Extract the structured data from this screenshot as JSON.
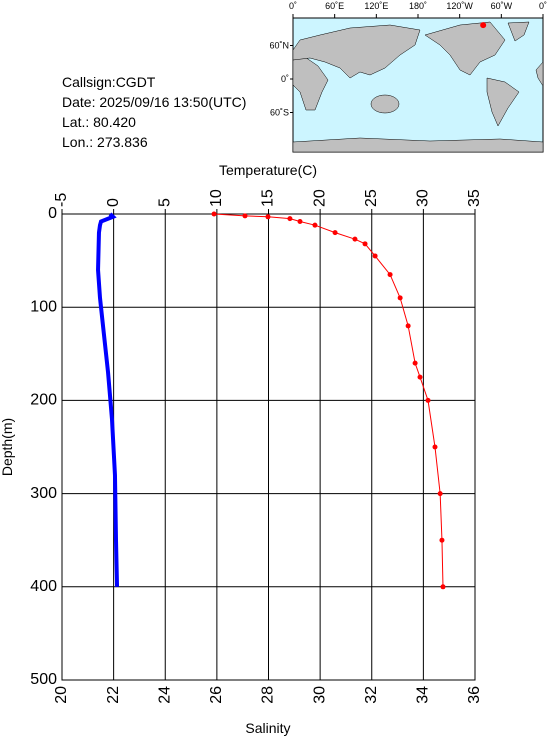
{
  "info": {
    "callsign": "Callsign:CGDT",
    "date": "Date:  2025/09/16 13:50(UTC)",
    "lat": "Lat.:  80.420",
    "lon": "Lon.:  273.836"
  },
  "map": {
    "lon_labels": [
      "0˚",
      "60˚E",
      "120˚E",
      "180˚",
      "120˚W",
      "60˚W",
      "0˚"
    ],
    "lat_labels": [
      "60˚N",
      "0˚",
      "60˚S"
    ],
    "station": {
      "lon": 273.836,
      "lat": 80.42,
      "color": "#ff0000"
    }
  },
  "chart_data": {
    "type": "line",
    "xlabel": "Salinity",
    "x2label": "Temperature(C)",
    "ylabel": "Depth(m)",
    "xlim": [
      20,
      36
    ],
    "xticks": [
      20,
      22,
      24,
      26,
      28,
      30,
      32,
      34,
      36
    ],
    "x2lim": [
      -5,
      35
    ],
    "x2ticks": [
      -5,
      0,
      5,
      10,
      15,
      20,
      25,
      30,
      35
    ],
    "ylim": [
      0,
      500
    ],
    "yticks": [
      0,
      100,
      200,
      300,
      400,
      500
    ],
    "y_inverted": true,
    "grid": true,
    "series": [
      {
        "color": "#0000ff",
        "axis": "x2",
        "markers": false,
        "depth": [
          0,
          3,
          8,
          12,
          20,
          60,
          90,
          130,
          170,
          220,
          280,
          350,
          400
        ],
        "values": [
          -0.35,
          -0.06,
          -1.22,
          -1.32,
          -1.42,
          -1.51,
          -1.32,
          -0.93,
          -0.54,
          -0.16,
          0.13,
          0.23,
          0.33
        ]
      },
      {
        "color": "#ff0000",
        "axis": "x",
        "markers": true,
        "depth": [
          0,
          2,
          3,
          5,
          8,
          12,
          20,
          27,
          32,
          45,
          65,
          90,
          120,
          160,
          175,
          200,
          250,
          300,
          350,
          400
        ],
        "values": [
          25.89,
          27.09,
          27.98,
          28.83,
          29.22,
          29.8,
          30.58,
          31.35,
          31.74,
          32.13,
          32.71,
          33.1,
          33.41,
          33.68,
          33.87,
          34.18,
          34.45,
          34.65,
          34.72,
          34.76
        ]
      }
    ]
  }
}
